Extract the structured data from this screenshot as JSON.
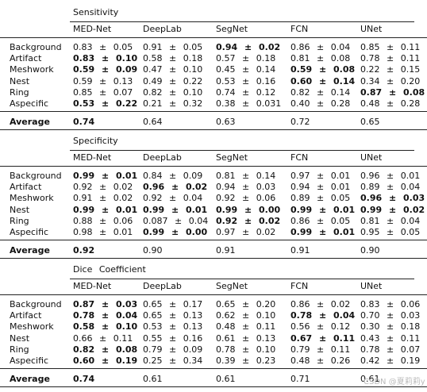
{
  "sections": [
    {
      "title": "Sensitivity",
      "columns": [
        "MED-Net",
        "DeepLab",
        "SegNet",
        "FCN",
        "UNet"
      ],
      "rows": [
        {
          "label": "Background",
          "cells": [
            "0.83 ± 0.05",
            "0.91 ± 0.05",
            {
              "text": "0.94 ± 0.02",
              "bold": true
            },
            "0.86 ± 0.04",
            "0.85 ± 0.11"
          ]
        },
        {
          "label": "Artifact",
          "cells": [
            {
              "text": "0.83 ± 0.10",
              "bold": true
            },
            "0.58 ± 0.18",
            "0.57 ± 0.18",
            "0.81 ± 0.08",
            "0.78 ± 0.11"
          ]
        },
        {
          "label": "Meshwork",
          "cells": [
            {
              "text": "0.59 ± 0.09",
              "bold": true
            },
            "0.47 ± 0.10",
            "0.45 ± 0.14",
            {
              "text": "0.59 ± 0.08",
              "bold": true
            },
            "0.22 ± 0.15"
          ]
        },
        {
          "label": "Nest",
          "cells": [
            "0.59 ± 0.13",
            "0.49 ± 0.22",
            "0.53 ± 0.16",
            {
              "text": "0.60 ± 0.14",
              "bold": true
            },
            "0.34 ± 0.20"
          ]
        },
        {
          "label": "Ring",
          "cells": [
            "0.85 ± 0.07",
            "0.82 ± 0.10",
            "0.74 ± 0.12",
            "0.82 ± 0.14",
            {
              "text": "0.87 ± 0.08",
              "bold": true
            }
          ]
        },
        {
          "label": "Aspecific",
          "cells": [
            {
              "text": "0.53 ± 0.22",
              "bold": true
            },
            "0.21 ± 0.32",
            "0.38 ± 0.031",
            "0.40 ± 0.28",
            "0.48 ± 0.28"
          ]
        }
      ],
      "average": {
        "label": "Average",
        "cells": [
          {
            "text": "0.74",
            "bold": true
          },
          "0.64",
          "0.63",
          "0.72",
          "0.65"
        ]
      }
    },
    {
      "title": "Specificity",
      "columns": [
        "MED-Net",
        "DeepLab",
        "SegNet",
        "FCN",
        "UNet"
      ],
      "rows": [
        {
          "label": "Background",
          "cells": [
            {
              "text": "0.99 ± 0.01",
              "bold": true
            },
            "0.84 ± 0.09",
            "0.81 ± 0.14",
            "0.97 ± 0.01",
            "0.96 ± 0.01"
          ]
        },
        {
          "label": "Artifact",
          "cells": [
            "0.92 ± 0.02",
            {
              "text": "0.96 ± 0.02",
              "bold": true
            },
            "0.94 ± 0.03",
            "0.94 ± 0.01",
            "0.89 ± 0.04"
          ]
        },
        {
          "label": "Meshwork",
          "cells": [
            "0.91 ± 0.02",
            "0.92 ± 0.04",
            "0.92 ± 0.06",
            "0.89 ± 0.05",
            {
              "text": "0.96 ± 0.03",
              "bold": true
            }
          ]
        },
        {
          "label": "Nest",
          "cells": [
            {
              "text": "0.99 ± 0.01",
              "bold": true
            },
            {
              "text": "0.99 ± 0.01",
              "bold": true
            },
            {
              "text": "0.99 ± 0.00",
              "bold": true
            },
            {
              "text": "0.99 ± 0.01",
              "bold": true
            },
            {
              "text": "0.99 ± 0.02",
              "bold": true
            }
          ]
        },
        {
          "label": "Ring",
          "cells": [
            "0.88 ± 0.06",
            "0.087 ± 0.04",
            {
              "text": "0.92 ± 0.02",
              "bold": true
            },
            "0.86 ± 0.05",
            "0.81 ± 0.04"
          ]
        },
        {
          "label": "Aspecific",
          "cells": [
            "0.98 ± 0.01",
            {
              "text": "0.99 ± 0.00",
              "bold": true
            },
            "0.97 ± 0.02",
            {
              "text": "0.99 ± 0.01",
              "bold": true
            },
            "0.95 ± 0.05"
          ]
        }
      ],
      "average": {
        "label": "Average",
        "cells": [
          {
            "text": "0.92",
            "bold": true
          },
          "0.90",
          "0.91",
          "0.91",
          "0.90"
        ]
      }
    },
    {
      "title": "Dice Coefficient",
      "columns": [
        "MED-Net",
        "DeepLab",
        "SegNet",
        "FCN",
        "UNet"
      ],
      "rows": [
        {
          "label": "Background",
          "cells": [
            {
              "text": "0.87 ± 0.03",
              "bold": true
            },
            "0.65 ± 0.17",
            "0.65 ± 0.20",
            "0.86 ± 0.02",
            "0.83 ± 0.06"
          ]
        },
        {
          "label": "Artifact",
          "cells": [
            {
              "text": "0.78 ± 0.04",
              "bold": true
            },
            "0.65 ± 0.13",
            "0.62 ± 0.10",
            {
              "text": "0.78 ± 0.04",
              "bold": true
            },
            "0.70 ± 0.03"
          ]
        },
        {
          "label": "Meshwork",
          "cells": [
            {
              "text": "0.58 ± 0.10",
              "bold": true
            },
            "0.53 ± 0.13",
            "0.48 ± 0.11",
            "0.56 ± 0.12",
            "0.30 ± 0.18"
          ]
        },
        {
          "label": "Nest",
          "cells": [
            "0.66 ± 0.11",
            "0.55 ± 0.16",
            "0.61 ± 0.13",
            {
              "text": "0.67 ± 0.11",
              "bold": true
            },
            "0.43 ± 0.11"
          ]
        },
        {
          "label": "Ring",
          "cells": [
            {
              "text": "0.82 ± 0.08",
              "bold": true
            },
            "0.79 ± 0.09",
            "0.78 ± 0.10",
            "0.79 ± 0.11",
            "0.78 ± 0.07"
          ]
        },
        {
          "label": "Aspecific",
          "cells": [
            {
              "text": "0.60 ± 0.19",
              "bold": true
            },
            "0.25 ± 0.34",
            "0.39 ± 0.23",
            "0.48 ± 0.26",
            "0.42 ± 0.19"
          ]
        }
      ],
      "average": {
        "label": "Average",
        "cells": [
          {
            "text": "0.74",
            "bold": true
          },
          "0.61",
          "0.61",
          "0.71",
          "0.61"
        ]
      }
    }
  ],
  "watermark": "CSDN @夏莉莉y"
}
